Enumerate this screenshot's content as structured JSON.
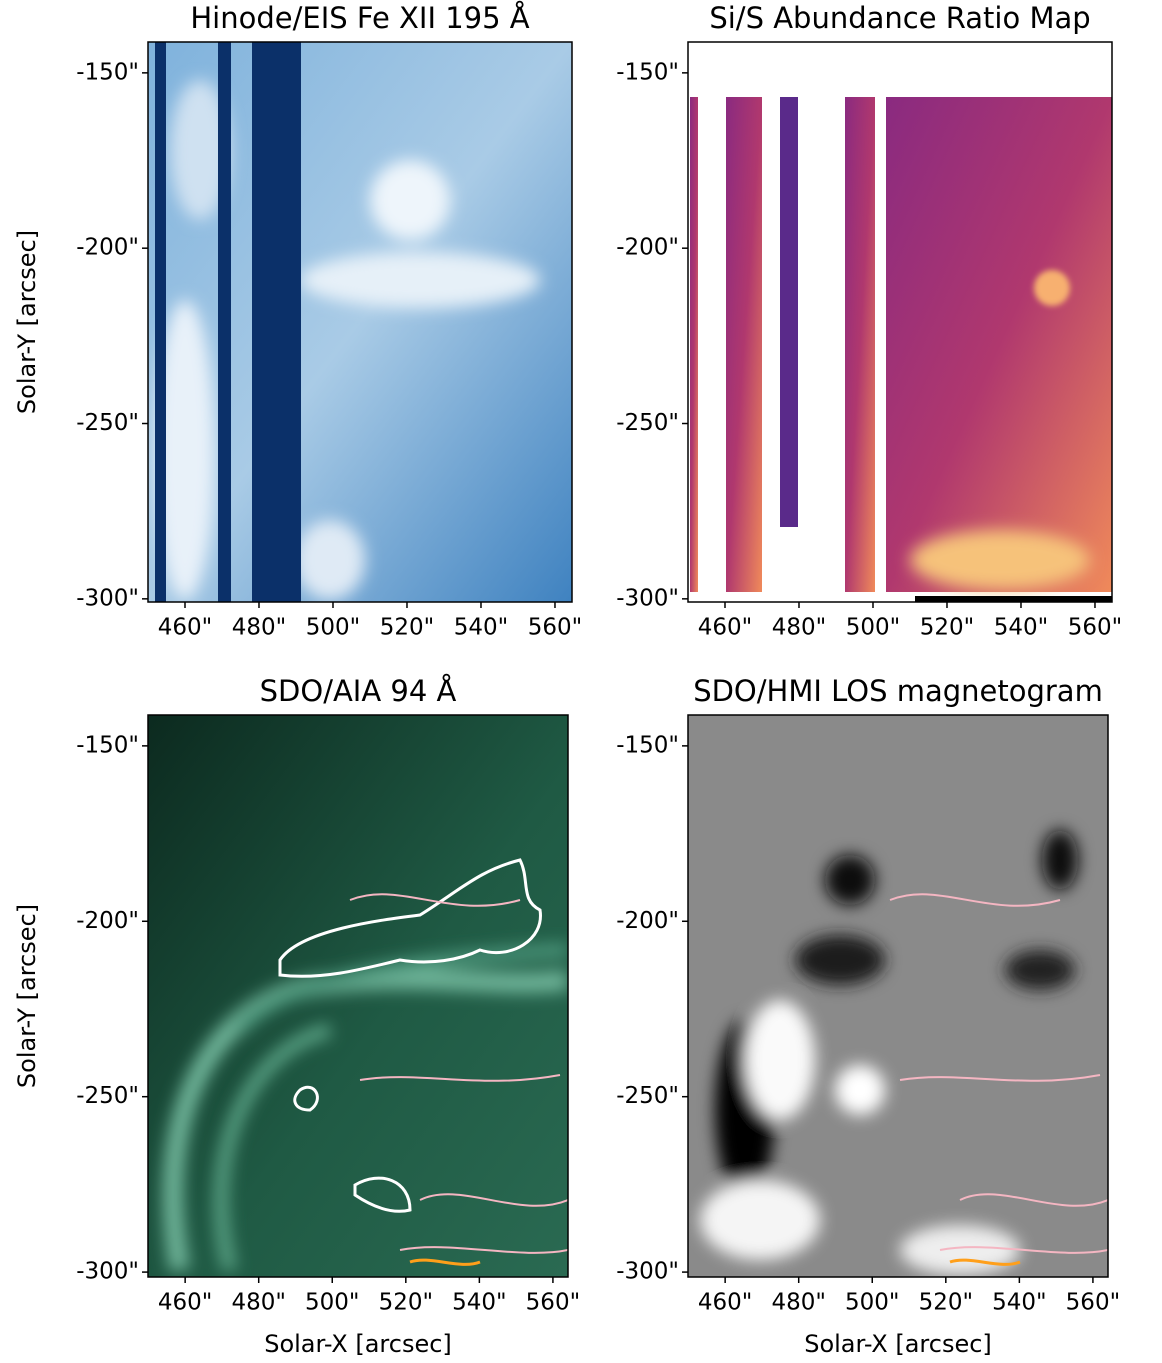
{
  "chart_data": [
    {
      "type": "image",
      "title": "Hinode/EIS Fe XII 195 Å",
      "ylabel": "Solar-Y [arcsec]",
      "xlim": [
        450,
        564.6
      ],
      "ylim": [
        -300.9,
        -141.2
      ],
      "xticks": [
        {
          "value": 460,
          "label": "460\""
        },
        {
          "value": 480,
          "label": "480\""
        },
        {
          "value": 500,
          "label": "500\""
        },
        {
          "value": 520,
          "label": "520\""
        },
        {
          "value": 540,
          "label": "540\""
        },
        {
          "value": 560,
          "label": "560\""
        }
      ],
      "yticks": [
        {
          "value": -150,
          "label": "-150\""
        },
        {
          "value": -200,
          "label": "-200\""
        },
        {
          "value": -250,
          "label": "-250\""
        },
        {
          "value": -300,
          "label": "-300\""
        }
      ]
    },
    {
      "type": "image",
      "title": "Si/S Abundance Ratio Map",
      "xlim": [
        450,
        564.6
      ],
      "ylim": [
        -300.9,
        -141.2
      ],
      "xticks": [
        {
          "value": 460,
          "label": "460\""
        },
        {
          "value": 480,
          "label": "480\""
        },
        {
          "value": 500,
          "label": "500\""
        },
        {
          "value": 520,
          "label": "520\""
        },
        {
          "value": 540,
          "label": "540\""
        },
        {
          "value": 560,
          "label": "560\""
        }
      ],
      "yticks": [
        {
          "value": -150,
          "label": "-150\""
        },
        {
          "value": -200,
          "label": "-200\""
        },
        {
          "value": -250,
          "label": "-250\""
        },
        {
          "value": -300,
          "label": "-300\""
        }
      ]
    },
    {
      "type": "image",
      "title": "SDO/AIA 94 Å",
      "xlabel": "Solar-X [arcsec]",
      "ylabel": "Solar-Y [arcsec]",
      "xlim": [
        449.9,
        564.1
      ],
      "ylim": [
        -301.4,
        -141.2
      ],
      "xticks": [
        {
          "value": 460,
          "label": "460\""
        },
        {
          "value": 480,
          "label": "480\""
        },
        {
          "value": 500,
          "label": "500\""
        },
        {
          "value": 520,
          "label": "520\""
        },
        {
          "value": 540,
          "label": "540\""
        },
        {
          "value": 560,
          "label": "560\""
        }
      ],
      "yticks": [
        {
          "value": -150,
          "label": "-150\""
        },
        {
          "value": -200,
          "label": "-200\""
        },
        {
          "value": -250,
          "label": "-250\""
        },
        {
          "value": -300,
          "label": "-300\""
        }
      ]
    },
    {
      "type": "image",
      "title": "SDO/HMI LOS magnetogram",
      "xlabel": "Solar-X [arcsec]",
      "xlim": [
        449.9,
        564.1
      ],
      "ylim": [
        -301.4,
        -141.2
      ],
      "xticks": [
        {
          "value": 460,
          "label": "460\""
        },
        {
          "value": 480,
          "label": "480\""
        },
        {
          "value": 500,
          "label": "500\""
        },
        {
          "value": 520,
          "label": "520\""
        },
        {
          "value": 540,
          "label": "540\""
        },
        {
          "value": 560,
          "label": "560\""
        }
      ],
      "yticks": [
        {
          "value": -150,
          "label": "-150\""
        },
        {
          "value": -200,
          "label": "-200\""
        },
        {
          "value": -250,
          "label": "-250\""
        },
        {
          "value": -300,
          "label": "-300\""
        }
      ]
    }
  ]
}
